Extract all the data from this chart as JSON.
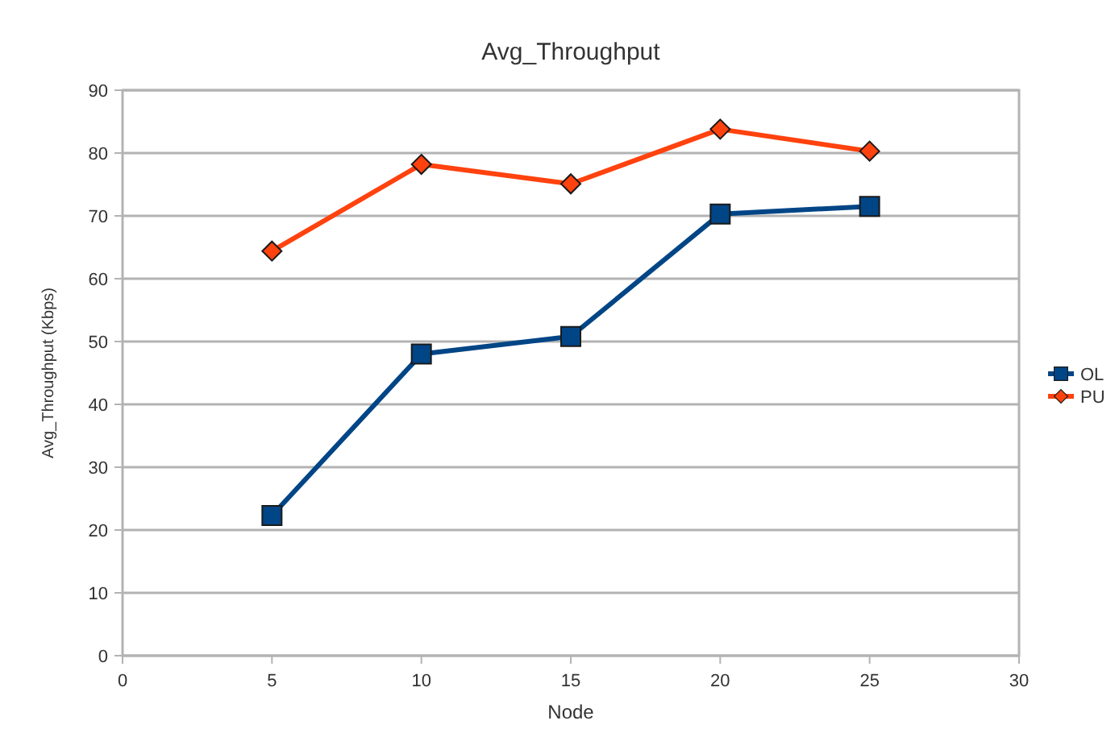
{
  "chart_data": {
    "type": "line",
    "title": "Avg_Throughput",
    "xlabel": "Node",
    "ylabel": "Avg_Throughput (Kbps)",
    "x": [
      5,
      10,
      15,
      20,
      25
    ],
    "series": [
      {
        "name": "OL",
        "color": "#004586",
        "marker": "square",
        "values": [
          22.3,
          48,
          50.8,
          70.3,
          71.5
        ]
      },
      {
        "name": "PU",
        "color": "#ff420e",
        "marker": "diamond",
        "values": [
          64.4,
          78.2,
          75.1,
          83.8,
          80.3
        ]
      }
    ],
    "xlim": [
      0,
      30
    ],
    "xticks": [
      0,
      5,
      10,
      15,
      20,
      25,
      30
    ],
    "ylim": [
      0,
      90
    ],
    "yticks": [
      0,
      10,
      20,
      30,
      40,
      50,
      60,
      70,
      80,
      90
    ],
    "grid": "y",
    "legend": "right"
  }
}
